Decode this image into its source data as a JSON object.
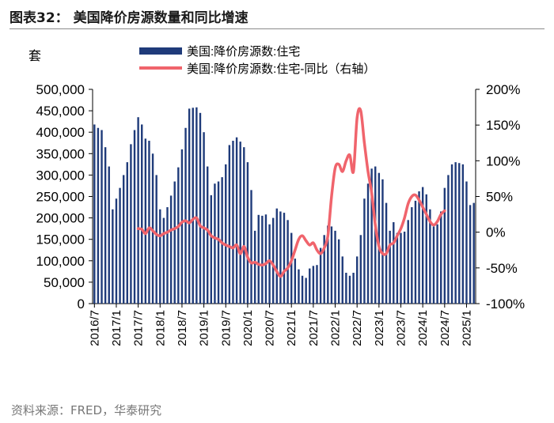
{
  "header": {
    "title": "图表32： 美国降价房源数量和同比增速"
  },
  "footer": {
    "source": "资料来源：FRED，华泰研究"
  },
  "colors": {
    "bar": "#1f3b7a",
    "line": "#f0646c",
    "axis": "#000000"
  },
  "chart_data": {
    "type": "bar",
    "title": "",
    "unit_label": "套",
    "legend": [
      {
        "name": "美国:降价房源数:住宅",
        "kind": "bar"
      },
      {
        "name": "美国:降价房源数:住宅-同比（右轴）",
        "kind": "line"
      }
    ],
    "legend_position": "top",
    "y_left": {
      "ylim": [
        0,
        500000
      ],
      "ticks": [
        "0",
        "50,000",
        "100,000",
        "150,000",
        "200,000",
        "250,000",
        "300,000",
        "350,000",
        "400,000",
        "450,000",
        "500,000"
      ]
    },
    "y_right": {
      "ylim": [
        -100,
        200
      ],
      "ticks": [
        "-100%",
        "-50%",
        "0%",
        "50%",
        "100%",
        "150%",
        "200%"
      ]
    },
    "x_ticks": [
      "2016/7",
      "2017/1",
      "2017/7",
      "2018/1",
      "2018/7",
      "2019/1",
      "2019/7",
      "2020/1",
      "2020/7",
      "2021/1",
      "2021/7",
      "2022/1",
      "2022/7",
      "2023/1",
      "2023/7",
      "2024/1",
      "2024/7",
      "2025/1"
    ],
    "start_month": "2016/7",
    "series": [
      {
        "name": "美国:降价房源数:住宅",
        "axis": "left",
        "values": [
          418000,
          410000,
          405000,
          365000,
          320000,
          220000,
          245000,
          270000,
          300000,
          330000,
          372000,
          405000,
          435000,
          418000,
          385000,
          380000,
          350000,
          300000,
          220000,
          200000,
          225000,
          252000,
          285000,
          318000,
          360000,
          410000,
          455000,
          457000,
          458000,
          445000,
          400000,
          320000,
          253000,
          280000,
          285000,
          295000,
          325000,
          370000,
          380000,
          388000,
          378000,
          365000,
          330000,
          265000,
          170000,
          207000,
          205000,
          208000,
          185000,
          200000,
          222000,
          215000,
          212000,
          195000,
          165000,
          105000,
          80000,
          65000,
          60000,
          82000,
          88000,
          90000,
          130000,
          160000,
          182000,
          180000,
          170000,
          150000,
          110000,
          72000,
          65000,
          72000,
          110000,
          160000,
          245000,
          280000,
          315000,
          320000,
          305000,
          290000,
          235000,
          170000,
          190000,
          165000,
          165000,
          168000,
          195000,
          225000,
          240000,
          262000,
          272000,
          255000,
          220000,
          180000,
          185000,
          215000,
          270000,
          300000,
          325000,
          330000,
          328000,
          325000,
          285000,
          230000,
          235000
        ]
      },
      {
        "name": "美国:降价房源数:住宅-同比（右轴）",
        "axis": "right",
        "start_month": "2017/7",
        "values": [
          5,
          4,
          -2,
          6,
          2,
          -3,
          -5,
          -2,
          0,
          3,
          5,
          8,
          14,
          16,
          13,
          18,
          20,
          9,
          6,
          3,
          -5,
          -8,
          -10,
          -15,
          -18,
          -20,
          -22,
          -18,
          -30,
          -20,
          -35,
          -43,
          -42,
          -45,
          -46,
          -44,
          -40,
          -46,
          -55,
          -62,
          -55,
          -50,
          -40,
          -25,
          -10,
          -5,
          -12,
          -18,
          -15,
          -25,
          -30,
          -22,
          -5,
          50,
          90,
          95,
          85,
          100,
          108,
          85,
          160,
          170,
          125,
          85,
          55,
          10,
          -20,
          -30,
          -30,
          -18,
          -15,
          -5,
          5,
          20,
          40,
          50,
          52,
          45,
          35,
          25,
          15,
          10,
          15,
          25,
          30
        ]
      }
    ]
  }
}
